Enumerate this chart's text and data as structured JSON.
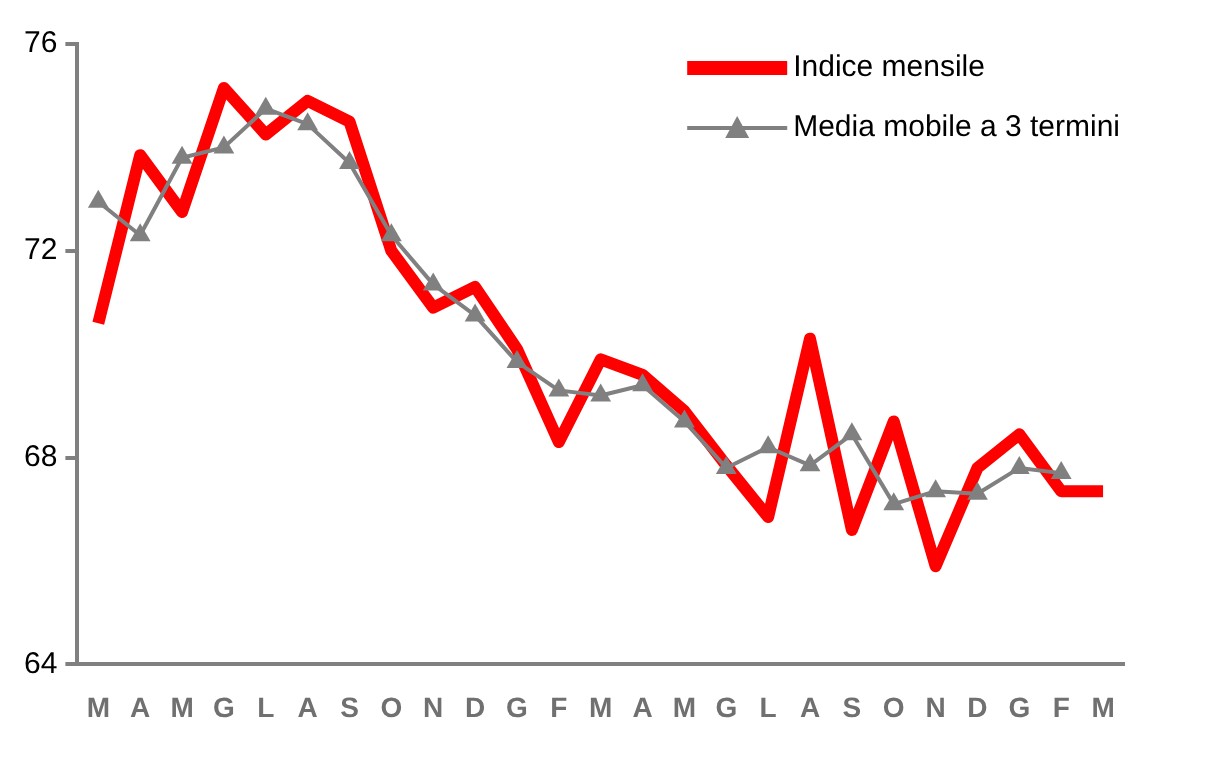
{
  "chart_data": {
    "type": "line",
    "categories": [
      "M",
      "A",
      "M",
      "G",
      "L",
      "A",
      "S",
      "O",
      "N",
      "D",
      "G",
      "F",
      "M",
      "A",
      "M",
      "G",
      "L",
      "A",
      "S",
      "O",
      "N",
      "D",
      "G",
      "F",
      "M"
    ],
    "series": [
      {
        "name": "Indice mensile",
        "color": "#ff0000",
        "marker": "none",
        "values": [
          70.6,
          73.85,
          72.75,
          75.15,
          74.25,
          74.9,
          74.5,
          72.0,
          70.9,
          71.3,
          70.1,
          68.3,
          69.9,
          69.6,
          68.9,
          67.85,
          66.85,
          70.3,
          66.6,
          68.7,
          65.9,
          67.8,
          68.45,
          67.35,
          67.35
        ]
      },
      {
        "name": "Media mobile a 3 termini",
        "color": "#808080",
        "marker": "triangle",
        "values": [
          72.95,
          72.3,
          73.8,
          74.0,
          74.75,
          74.45,
          73.7,
          72.3,
          71.35,
          70.75,
          69.85,
          69.3,
          69.2,
          69.4,
          68.7,
          67.8,
          68.2,
          67.85,
          68.45,
          67.1,
          67.35,
          67.3,
          67.8,
          67.7,
          null
        ]
      }
    ],
    "ylim": [
      64,
      76
    ],
    "yticks": [
      64,
      68,
      72,
      76
    ],
    "grid": false,
    "legend": "top right"
  }
}
